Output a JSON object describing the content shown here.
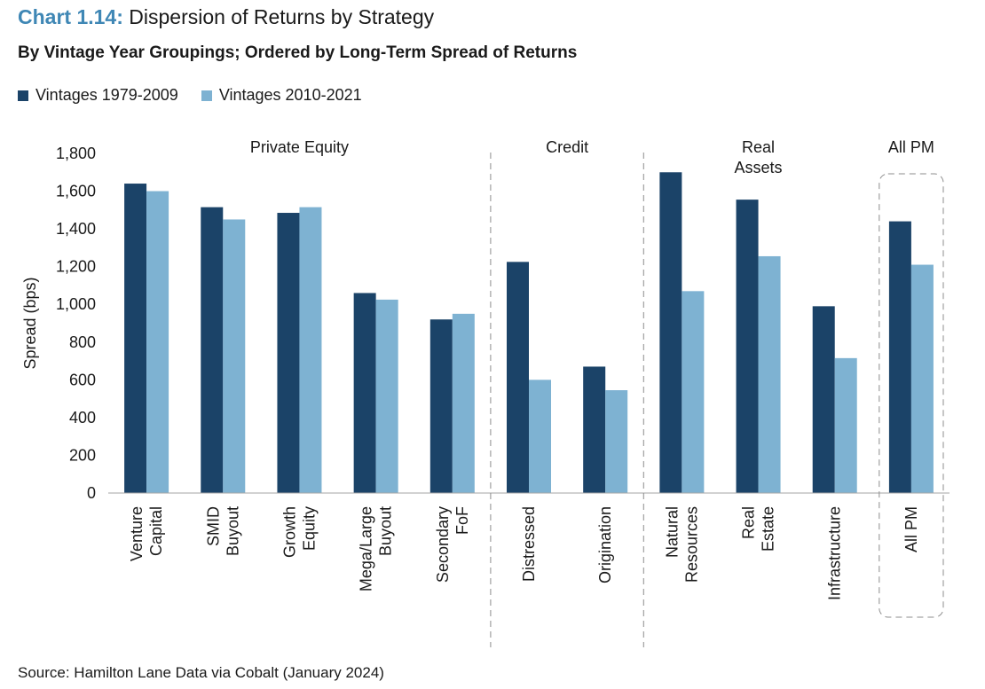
{
  "header": {
    "chart_number": "Chart 1.14:",
    "title": "Dispersion of Returns by Strategy",
    "subtitle": "By Vintage Year Groupings; Ordered by Long-Term Spread of Returns"
  },
  "footer": {
    "source": "Source: Hamilton Lane Data via Cobalt (January 2024)"
  },
  "colors": {
    "series_1": "#1b4368",
    "series_2": "#7eb2d2"
  },
  "chart_data": {
    "type": "bar",
    "title": "Dispersion of Returns by Strategy",
    "ylabel": "Spread (bps)",
    "ylim": [
      0,
      1800
    ],
    "yticks": [
      "0",
      "200",
      "400",
      "600",
      "800",
      "1,000",
      "1,200",
      "1,400",
      "1,600",
      "1,800"
    ],
    "grid": false,
    "legend_position": "top-left",
    "categories": [
      [
        "Venture",
        "Capital"
      ],
      [
        "SMID",
        "Buyout"
      ],
      [
        "Growth",
        "Equity"
      ],
      [
        "Mega/Large",
        "Buyout"
      ],
      [
        "Secondary",
        "FoF"
      ],
      [
        "Distressed"
      ],
      [
        "Origination"
      ],
      [
        "Natural",
        "Resources"
      ],
      [
        "Real",
        "Estate"
      ],
      [
        "Infrastructure"
      ],
      [
        "All PM"
      ]
    ],
    "series": [
      {
        "name": "Vintages 1979-2009",
        "values": [
          1640,
          1515,
          1485,
          1060,
          920,
          1225,
          670,
          1700,
          1555,
          990,
          1440
        ]
      },
      {
        "name": "Vintages 2010-2021",
        "values": [
          1600,
          1450,
          1515,
          1025,
          950,
          600,
          545,
          1070,
          1255,
          715,
          1210
        ]
      }
    ],
    "groups": [
      {
        "label": [
          "Private Equity"
        ],
        "start": 0,
        "end": 4
      },
      {
        "label": [
          "Credit"
        ],
        "start": 5,
        "end": 6
      },
      {
        "label": [
          "Real",
          "Assets"
        ],
        "start": 7,
        "end": 9
      },
      {
        "label": [
          "All PM"
        ],
        "start": 10,
        "end": 10
      }
    ]
  }
}
